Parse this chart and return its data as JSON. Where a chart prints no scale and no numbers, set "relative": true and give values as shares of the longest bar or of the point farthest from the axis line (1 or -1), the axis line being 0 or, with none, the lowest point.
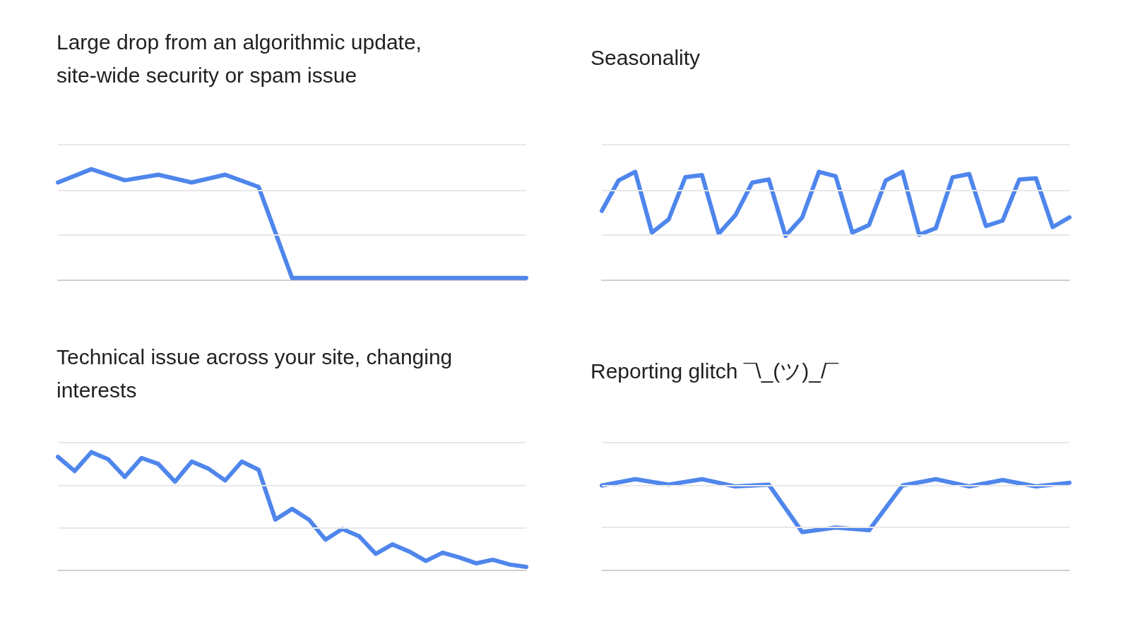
{
  "chart_data": [
    {
      "type": "line",
      "title": "Large drop from an algorithmic update, site-wide security or spam issue",
      "categories": [
        null,
        null,
        null,
        null,
        null,
        null,
        null,
        null,
        null,
        null,
        null,
        null,
        null,
        null,
        null
      ],
      "relative": true,
      "marker": "none",
      "line_style": "solid",
      "color": "#4f86ec",
      "ref_lines": [
        {
          "axis": "y",
          "value": 0.41,
          "color": "#e8e8e8"
        },
        {
          "axis": "y",
          "value": 0.81,
          "color": "#e8e8e8"
        },
        {
          "axis": "y",
          "value": 1.22,
          "color": "#e8e8e8"
        }
      ],
      "values": [
        0.88,
        1,
        0.9,
        0.95,
        0.88,
        0.95,
        0.84,
        0.02,
        0.02,
        0.02,
        0.02,
        0.02,
        0.02,
        0.02,
        0.02
      ]
    },
    {
      "type": "line",
      "title": "Seasonality",
      "categories": [
        null,
        null,
        null,
        null,
        null,
        null,
        null,
        null,
        null,
        null,
        null,
        null,
        null,
        null,
        null,
        null,
        null,
        null,
        null,
        null,
        null,
        null,
        null,
        null,
        null,
        null,
        null,
        null,
        null
      ],
      "relative": true,
      "marker": "none",
      "line_style": "solid",
      "color": "#4f86ec",
      "ref_lines": [
        {
          "axis": "y",
          "value": 0.42,
          "color": "#e8e8e8"
        },
        {
          "axis": "y",
          "value": 0.83,
          "color": "#e8e8e8"
        },
        {
          "axis": "y",
          "value": 1.25,
          "color": "#e8e8e8"
        }
      ],
      "values": [
        0.64,
        0.92,
        1,
        0.44,
        0.56,
        0.95,
        0.97,
        0.43,
        0.6,
        0.9,
        0.93,
        0.41,
        0.58,
        1,
        0.96,
        0.44,
        0.51,
        0.92,
        1,
        0.42,
        0.48,
        0.95,
        0.98,
        0.5,
        0.55,
        0.93,
        0.94,
        0.49,
        0.58
      ]
    },
    {
      "type": "line",
      "title": "Technical issue across your site, changing interests",
      "categories": [
        null,
        null,
        null,
        null,
        null,
        null,
        null,
        null,
        null,
        null,
        null,
        null,
        null,
        null,
        null,
        null,
        null,
        null,
        null,
        null,
        null,
        null,
        null,
        null,
        null,
        null,
        null,
        null,
        null
      ],
      "relative": true,
      "marker": "none",
      "line_style": "solid",
      "color": "#4f86ec",
      "ref_lines": [
        {
          "axis": "y",
          "value": 0.36,
          "color": "#e8e8e8"
        },
        {
          "axis": "y",
          "value": 0.72,
          "color": "#e8e8e8"
        },
        {
          "axis": "y",
          "value": 1.08,
          "color": "#e8e8e8"
        }
      ],
      "values": [
        0.96,
        0.84,
        1,
        0.94,
        0.79,
        0.95,
        0.9,
        0.75,
        0.92,
        0.86,
        0.76,
        0.92,
        0.85,
        0.43,
        0.52,
        0.43,
        0.26,
        0.35,
        0.29,
        0.14,
        0.22,
        0.16,
        0.08,
        0.15,
        0.11,
        0.06,
        0.09,
        0.05,
        0.03
      ]
    },
    {
      "type": "line",
      "title": "Reporting glitch ¯\\_(ツ)_/¯",
      "categories": [
        null,
        null,
        null,
        null,
        null,
        null,
        null,
        null,
        null,
        null,
        null,
        null,
        null,
        null,
        null
      ],
      "relative": true,
      "marker": "none",
      "line_style": "solid",
      "color": "#4f86ec",
      "ref_lines": [
        {
          "axis": "y",
          "value": 0.47,
          "color": "#e8e8e8"
        },
        {
          "axis": "y",
          "value": 0.93,
          "color": "#e8e8e8"
        },
        {
          "axis": "y",
          "value": 1.4,
          "color": "#e8e8e8"
        }
      ],
      "values": [
        0.93,
        1,
        0.94,
        1,
        0.92,
        0.94,
        0.42,
        0.47,
        0.44,
        0.93,
        1,
        0.92,
        0.99,
        0.92,
        0.96
      ]
    }
  ]
}
